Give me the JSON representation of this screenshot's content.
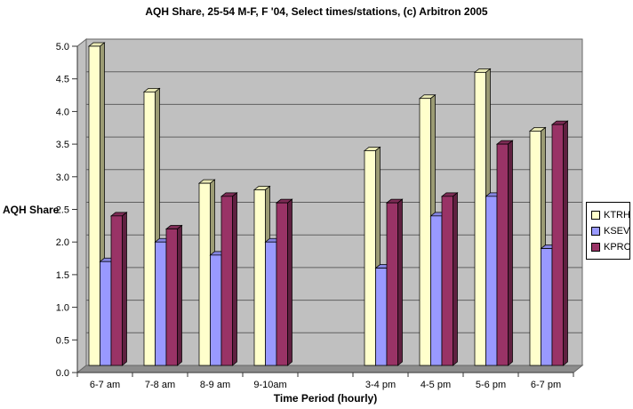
{
  "title": "AQH Share, 25-54 M-F, F '04, Select times/stations, (c) Arbitron 2005",
  "chart_data": {
    "type": "bar",
    "style": "3d-effect-clustered-column",
    "title": "AQH Share, 25-54 M-F, F '04, Select times/stations, (c) Arbitron 2005",
    "xlabel": "Time Period (hourly)",
    "ylabel": "AQH Share",
    "ylim": [
      0.0,
      5.0
    ],
    "ytick_step": 0.5,
    "ytick_labels": [
      "0.0",
      "0.5",
      "1.0",
      "1.5",
      "2.0",
      "2.5",
      "3.0",
      "3.5",
      "4.0",
      "4.5",
      "5.0"
    ],
    "grid": true,
    "legend_position": "right",
    "categories": [
      "6-7 am",
      "7-8 am",
      "8-9 am",
      "9-10am",
      "",
      "3-4 pm",
      "4-5 pm",
      "5-6 pm",
      "6-7 pm"
    ],
    "series": [
      {
        "name": "KTRH",
        "color": "#FFFFCC",
        "top_color": "#E8E8B4",
        "side_color": "#9C9C74",
        "values": [
          5.0,
          4.3,
          2.9,
          2.8,
          null,
          3.4,
          4.2,
          4.6,
          3.7
        ]
      },
      {
        "name": "KSEV",
        "color": "#9999FF",
        "top_color": "#8585E0",
        "side_color": "#6363AD",
        "values": [
          1.7,
          2.0,
          1.8,
          2.0,
          null,
          1.6,
          2.4,
          2.7,
          1.9
        ]
      },
      {
        "name": "KPRC",
        "color": "#993366",
        "top_color": "#7D2B55",
        "side_color": "#5F2040",
        "values": [
          2.4,
          2.2,
          2.7,
          2.6,
          null,
          2.6,
          2.7,
          3.5,
          3.8
        ]
      }
    ],
    "colors": {
      "plot_wall": "#C0C0C0",
      "floor": "#8C8C8C",
      "gridline": "#606060",
      "axis": "#333333",
      "wall_border": "#666666",
      "bar_outline": "#000000",
      "background": "#FFFFFF"
    }
  }
}
